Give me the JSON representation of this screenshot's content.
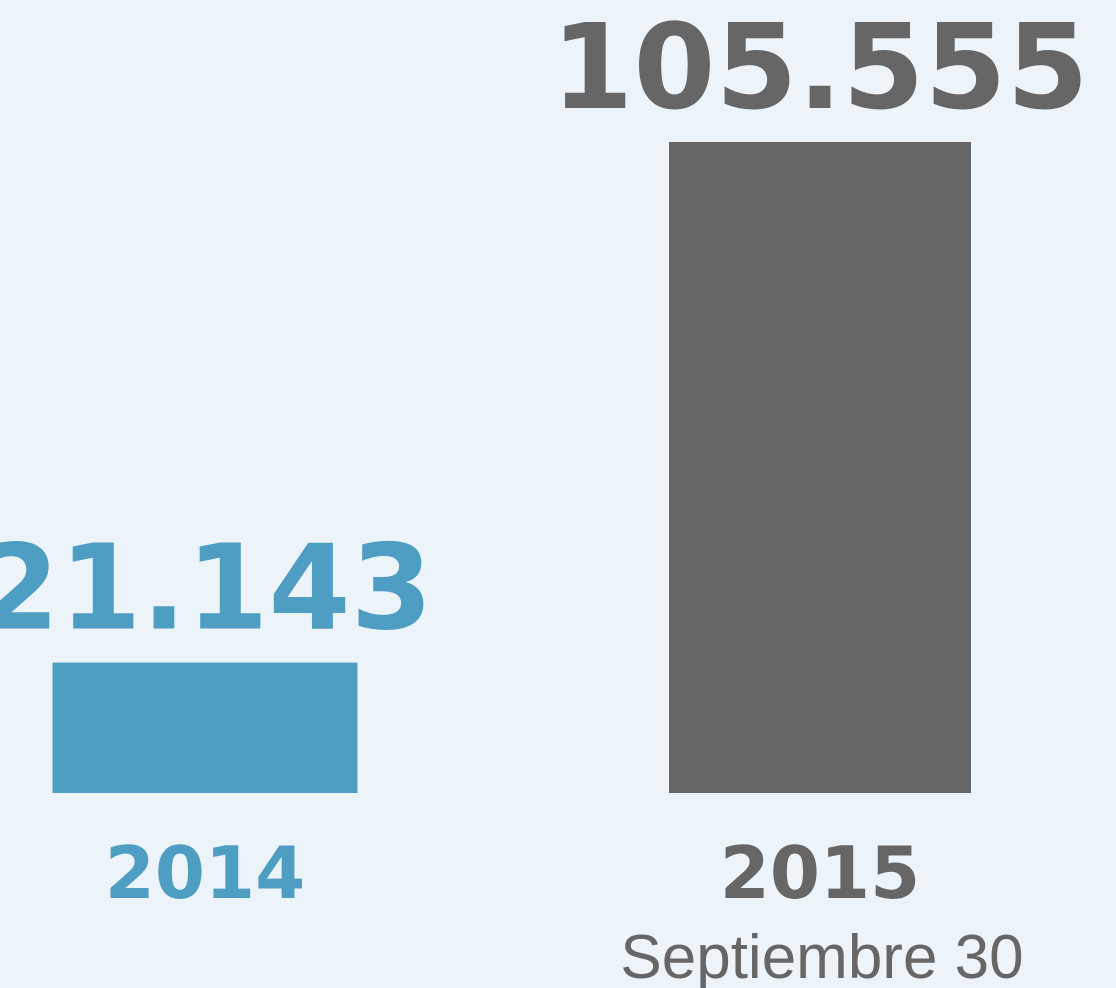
{
  "chart_data": {
    "type": "bar",
    "categories": [
      "2014",
      "2015"
    ],
    "values": [
      21143,
      105555
    ],
    "value_labels": [
      "21.143",
      "105.555"
    ],
    "colors": [
      "#4e9ec4",
      "#666666"
    ],
    "annotation": "Septiembre 30"
  }
}
